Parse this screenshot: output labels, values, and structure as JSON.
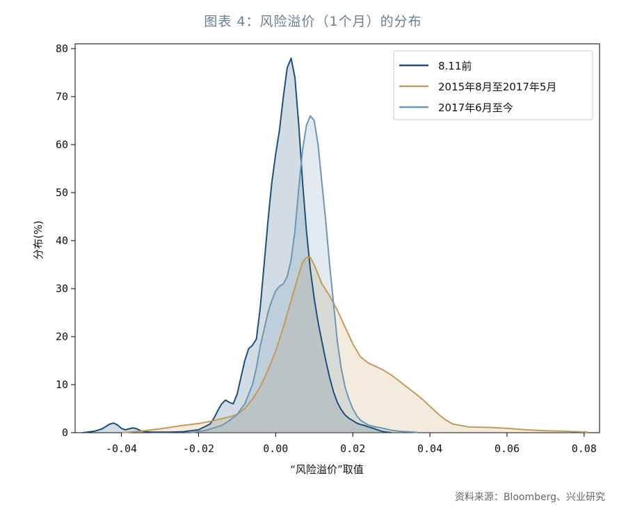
{
  "figure": {
    "title": "图表 4：风险溢价（1个月）的分布",
    "source": "资料来源：Bloomberg、兴业研究"
  },
  "chart_data": {
    "type": "area",
    "title": "",
    "xlabel": "“风险溢价”取值",
    "ylabel": "分布(%)",
    "xlim": [
      -0.052,
      0.084
    ],
    "ylim": [
      0,
      81
    ],
    "xticks": [
      -0.04,
      -0.02,
      0.0,
      0.02,
      0.04,
      0.06,
      0.08
    ],
    "xtick_labels": [
      "-0.04",
      "-0.02",
      "0.00",
      "0.02",
      "0.04",
      "0.06",
      "0.08"
    ],
    "yticks": [
      0,
      10,
      20,
      30,
      40,
      50,
      60,
      70,
      80
    ],
    "ytick_labels": [
      "0",
      "10",
      "20",
      "30",
      "40",
      "50",
      "60",
      "70",
      "80"
    ],
    "grid": false,
    "legend_position": "top-right",
    "series": [
      {
        "name": "8.11前",
        "color": "#1f4e79",
        "x": [
          -0.05,
          -0.047,
          -0.045,
          -0.043,
          -0.042,
          -0.041,
          -0.04,
          -0.039,
          -0.038,
          -0.037,
          -0.036,
          -0.035,
          -0.034,
          -0.032,
          -0.028,
          -0.024,
          -0.02,
          -0.017,
          -0.016,
          -0.015,
          -0.014,
          -0.013,
          -0.012,
          -0.011,
          -0.01,
          -0.009,
          -0.008,
          -0.007,
          -0.006,
          -0.005,
          -0.004,
          -0.003,
          -0.002,
          -0.001,
          0.0,
          0.001,
          0.002,
          0.003,
          0.004,
          0.005,
          0.006,
          0.007,
          0.008,
          0.009,
          0.01,
          0.011,
          0.012,
          0.013,
          0.014,
          0.015,
          0.016,
          0.017,
          0.018,
          0.019,
          0.02,
          0.021,
          0.022,
          0.023,
          0.024,
          0.025,
          0.026,
          0.027,
          0.028,
          0.03
        ],
        "y": [
          0,
          0.3,
          0.8,
          1.8,
          2.0,
          1.6,
          0.9,
          0.6,
          0.8,
          1.0,
          0.8,
          0.4,
          0.2,
          0.1,
          0.1,
          0.2,
          0.6,
          1.8,
          3.0,
          4.6,
          6.0,
          6.8,
          6.3,
          6.0,
          8.0,
          11.5,
          15.0,
          17.5,
          18.2,
          19.5,
          26.0,
          35.0,
          44.0,
          52.0,
          58.0,
          63.0,
          70.0,
          76.0,
          78.0,
          74.0,
          64.0,
          52.0,
          42.0,
          34.0,
          28.0,
          23.0,
          19.0,
          15.0,
          11.5,
          8.5,
          6.3,
          4.8,
          3.7,
          3.0,
          2.5,
          2.0,
          1.7,
          1.5,
          1.2,
          1.0,
          0.7,
          0.4,
          0.2,
          0
        ]
      },
      {
        "name": "2015年8月至2017年5月",
        "color": "#c49a5c",
        "x": [
          -0.04,
          -0.035,
          -0.03,
          -0.025,
          -0.02,
          -0.016,
          -0.012,
          -0.01,
          -0.008,
          -0.006,
          -0.004,
          -0.002,
          0.0,
          0.002,
          0.004,
          0.006,
          0.007,
          0.008,
          0.009,
          0.01,
          0.011,
          0.012,
          0.014,
          0.016,
          0.018,
          0.02,
          0.022,
          0.024,
          0.026,
          0.028,
          0.03,
          0.032,
          0.034,
          0.036,
          0.038,
          0.04,
          0.042,
          0.044,
          0.046,
          0.05,
          0.055,
          0.06,
          0.065,
          0.07,
          0.075,
          0.081
        ],
        "y": [
          0,
          0.3,
          0.8,
          1.4,
          1.9,
          2.5,
          3.3,
          3.8,
          5.0,
          7.0,
          9.5,
          13.0,
          17.0,
          22.0,
          27.5,
          33.0,
          35.5,
          36.5,
          36.5,
          35.0,
          33.0,
          31.0,
          28.5,
          25.5,
          22.0,
          18.5,
          15.8,
          14.5,
          13.8,
          13.0,
          12.0,
          10.8,
          9.5,
          8.3,
          7.0,
          5.5,
          4.0,
          2.7,
          1.8,
          1.2,
          1.1,
          0.9,
          0.6,
          0.4,
          0.3,
          0.1
        ]
      },
      {
        "name": "2017年6月至今",
        "color": "#6e95b3",
        "x": [
          -0.022,
          -0.018,
          -0.014,
          -0.012,
          -0.01,
          -0.008,
          -0.006,
          -0.005,
          -0.004,
          -0.003,
          -0.002,
          -0.001,
          0.0,
          0.001,
          0.002,
          0.003,
          0.004,
          0.005,
          0.006,
          0.007,
          0.008,
          0.009,
          0.01,
          0.011,
          0.012,
          0.013,
          0.014,
          0.015,
          0.016,
          0.017,
          0.018,
          0.019,
          0.02,
          0.021,
          0.022,
          0.024,
          0.026,
          0.028,
          0.03,
          0.032,
          0.034,
          0.036,
          0.037
        ],
        "y": [
          0,
          0.5,
          1.5,
          2.5,
          3.8,
          6.0,
          10.0,
          13.5,
          18.0,
          21.5,
          25.0,
          27.5,
          29.5,
          30.5,
          31.0,
          32.5,
          36.0,
          42.0,
          51.0,
          59.0,
          64.0,
          66.0,
          65.0,
          60.0,
          52.0,
          44.0,
          35.0,
          27.0,
          19.0,
          13.5,
          9.5,
          7.0,
          5.0,
          3.6,
          2.6,
          1.6,
          1.2,
          0.9,
          0.5,
          0.3,
          0.2,
          0.1,
          0
        ]
      }
    ]
  }
}
